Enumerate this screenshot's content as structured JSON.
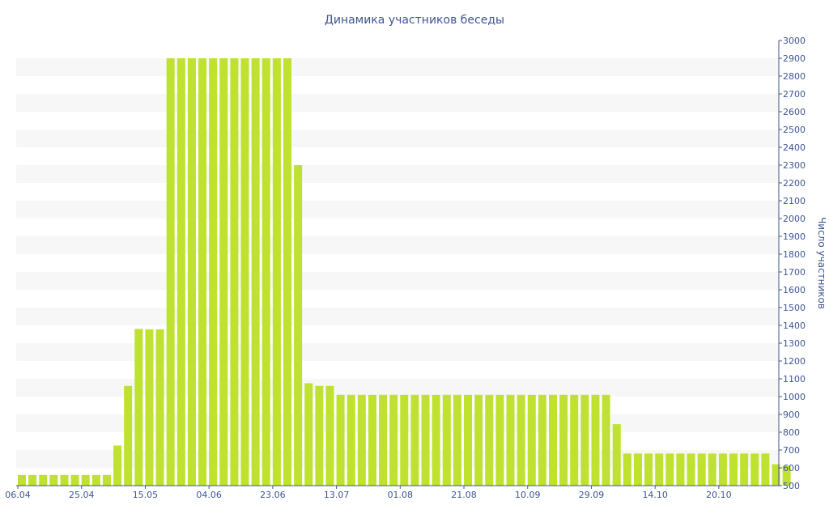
{
  "chart_data": {
    "type": "bar",
    "title": "Динамика участников беседы",
    "ylabel": "Число участников",
    "xlabel": "",
    "ylim": [
      500,
      3000
    ],
    "yticks": [
      500,
      600,
      700,
      800,
      900,
      1000,
      1100,
      1200,
      1300,
      1400,
      1500,
      1600,
      1700,
      1800,
      1900,
      2000,
      2100,
      2200,
      2300,
      2400,
      2500,
      2600,
      2700,
      2800,
      2900,
      3000
    ],
    "xtick_labels": [
      "06.04",
      "25.04",
      "15.05",
      "04.06",
      "23.06",
      "13.07",
      "01.08",
      "21.08",
      "10.09",
      "29.09",
      "14.10",
      "20.10"
    ],
    "xtick_bar_index": [
      0,
      6,
      12,
      18,
      24,
      30,
      36,
      42,
      48,
      54,
      60,
      66
    ],
    "grid": "horizontal-bands",
    "axis_side": "right",
    "colors": {
      "bar": "#bfe12f",
      "text": "#3d5591",
      "band": "#f7f7f7",
      "axis": "#3d5591"
    },
    "values": [
      560,
      560,
      560,
      560,
      560,
      560,
      560,
      560,
      560,
      725,
      1060,
      1380,
      1378,
      1378,
      2900,
      2900,
      2900,
      2900,
      2900,
      2900,
      2900,
      2900,
      2900,
      2900,
      2900,
      2900,
      2300,
      1075,
      1060,
      1060,
      1010,
      1010,
      1010,
      1010,
      1010,
      1010,
      1010,
      1010,
      1010,
      1010,
      1010,
      1010,
      1010,
      1010,
      1010,
      1010,
      1010,
      1010,
      1010,
      1010,
      1010,
      1010,
      1010,
      1010,
      1010,
      1010,
      845,
      680,
      680,
      680,
      680,
      680,
      680,
      680,
      680,
      680,
      680,
      680,
      680,
      680,
      680,
      620,
      612
    ]
  }
}
